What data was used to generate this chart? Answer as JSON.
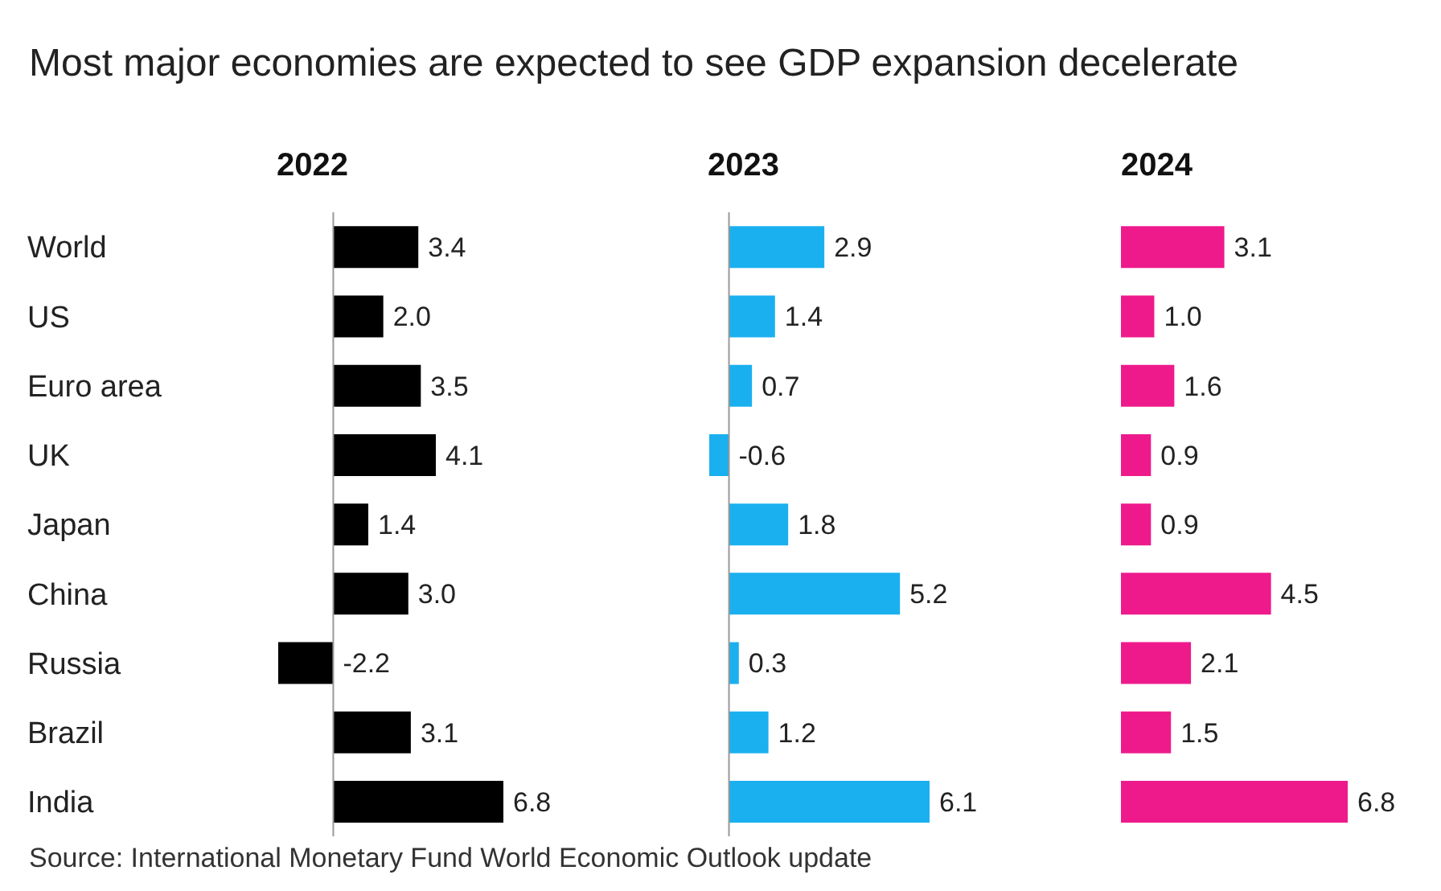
{
  "chart_data": [
    {
      "type": "bar",
      "orientation": "horizontal",
      "title": "Most major economies are expected to see GDP expansion decelerate",
      "subtitle": "2022",
      "categories": [
        "World",
        "US",
        "Euro area",
        "UK",
        "Japan",
        "China",
        "Russia",
        "Brazil",
        "India"
      ],
      "values": [
        3.4,
        2.0,
        3.5,
        4.1,
        1.4,
        3.0,
        -2.2,
        3.1,
        6.8
      ],
      "value_labels": [
        "3.4",
        "2.0",
        "3.5",
        "4.1",
        "1.4",
        "3.0",
        "-2.2",
        "3.1",
        "6.8"
      ],
      "color": "#000000",
      "tick_labels": "y",
      "ref_lines": [
        {
          "axis": "x",
          "value": 0,
          "color": "#999999"
        }
      ],
      "annotations": [
        "Source: International Monetary Fund World Economic Outlook update"
      ]
    },
    {
      "type": "bar",
      "orientation": "horizontal",
      "subtitle": "2023",
      "categories": [
        null,
        null,
        null,
        null,
        null,
        null,
        null,
        null,
        null
      ],
      "values": [
        2.9,
        1.4,
        0.7,
        -0.6,
        1.8,
        5.2,
        0.3,
        1.2,
        6.1
      ],
      "value_labels": [
        "2.9",
        "1.4",
        "0.7",
        "-0.6",
        "1.8",
        "5.2",
        "0.3",
        "1.2",
        "6.1"
      ],
      "color": "#1ab0f0",
      "tick_labels": false,
      "ref_lines": [
        {
          "axis": "x",
          "value": 0,
          "color": "#999999"
        }
      ]
    },
    {
      "type": "bar",
      "orientation": "horizontal",
      "subtitle": "2024",
      "categories": [
        null,
        null,
        null,
        null,
        null,
        null,
        null,
        null,
        null
      ],
      "values": [
        3.1,
        1.0,
        1.6,
        0.9,
        0.9,
        4.5,
        2.1,
        1.5,
        6.8
      ],
      "value_labels": [
        "3.1",
        "1.0",
        "1.6",
        "0.9",
        "0.9",
        "4.5",
        "2.1",
        "1.5",
        "6.8"
      ],
      "color": "#ee1a8c",
      "tick_labels": false
    }
  ]
}
